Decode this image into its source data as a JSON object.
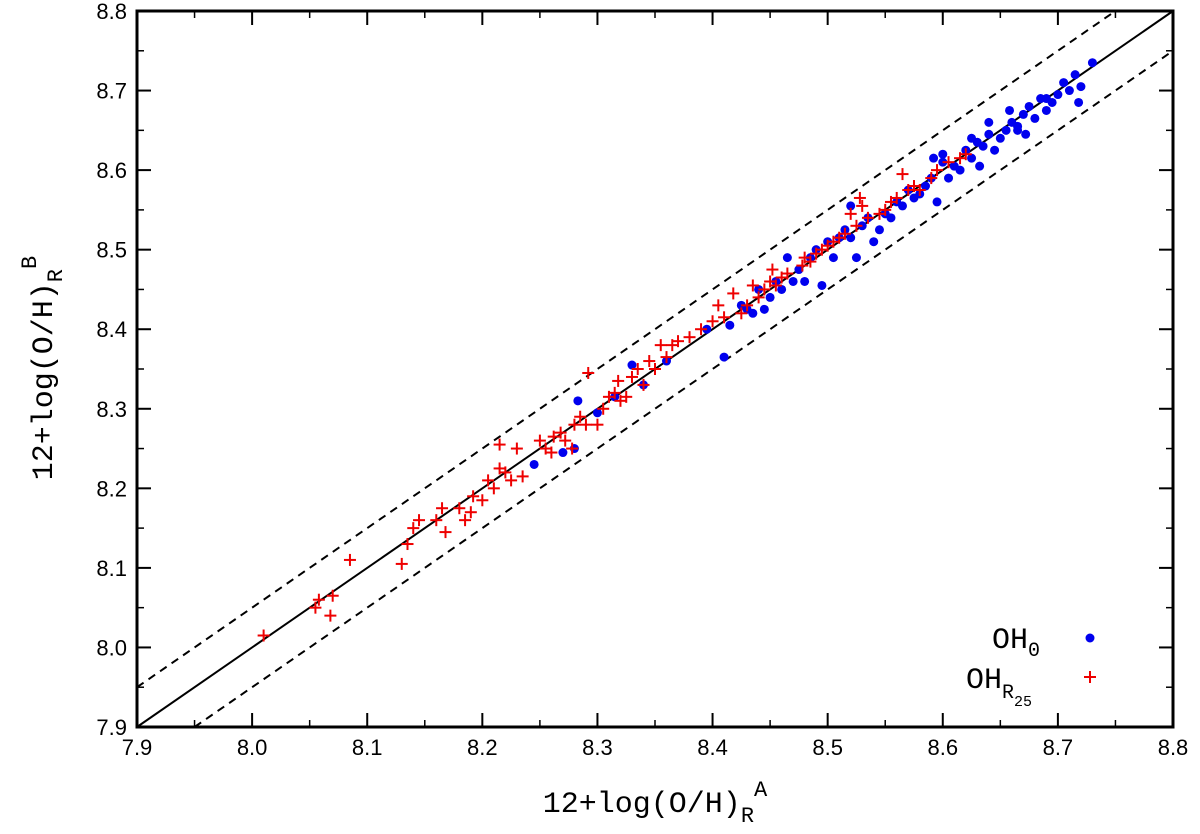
{
  "chart_data": {
    "type": "scatter",
    "xlabel": {
      "main": "12+log(O/H)",
      "sub": "R",
      "sup": "A"
    },
    "ylabel": {
      "main": "12+log(O/H)",
      "sub": "R",
      "sup": "B"
    },
    "xlim": [
      7.9,
      8.8
    ],
    "ylim": [
      7.9,
      8.8
    ],
    "xticks": [
      "7.9",
      "8.0",
      "8.1",
      "8.2",
      "8.3",
      "8.4",
      "8.5",
      "8.6",
      "8.7",
      "8.8"
    ],
    "yticks": [
      "7.9",
      "8.0",
      "8.1",
      "8.2",
      "8.3",
      "8.4",
      "8.5",
      "8.6",
      "8.7",
      "8.8"
    ],
    "grid": false,
    "legend_position": "bottom-right",
    "reference_lines": [
      {
        "name": "one-to-one",
        "style": "solid",
        "offset": 0
      },
      {
        "name": "upper-bound",
        "style": "dashed",
        "offset": 0.05
      },
      {
        "name": "lower-bound",
        "style": "dashed",
        "offset": -0.05
      }
    ],
    "series": [
      {
        "name": "OH0",
        "legend_main": "OH",
        "legend_sub": "0",
        "legend_subsub": "",
        "marker": "circle",
        "color": "#0000ee",
        "points": [
          [
            8.245,
            8.23
          ],
          [
            8.27,
            8.245
          ],
          [
            8.28,
            8.25
          ],
          [
            8.283,
            8.31
          ],
          [
            8.3,
            8.295
          ],
          [
            8.315,
            8.315
          ],
          [
            8.33,
            8.355
          ],
          [
            8.34,
            8.33
          ],
          [
            8.36,
            8.36
          ],
          [
            8.395,
            8.4
          ],
          [
            8.41,
            8.365
          ],
          [
            8.415,
            8.405
          ],
          [
            8.425,
            8.43
          ],
          [
            8.43,
            8.425
          ],
          [
            8.435,
            8.42
          ],
          [
            8.44,
            8.45
          ],
          [
            8.445,
            8.425
          ],
          [
            8.45,
            8.44
          ],
          [
            8.455,
            8.46
          ],
          [
            8.46,
            8.45
          ],
          [
            8.465,
            8.49
          ],
          [
            8.47,
            8.46
          ],
          [
            8.475,
            8.475
          ],
          [
            8.48,
            8.46
          ],
          [
            8.485,
            8.49
          ],
          [
            8.49,
            8.5
          ],
          [
            8.495,
            8.455
          ],
          [
            8.5,
            8.51
          ],
          [
            8.505,
            8.49
          ],
          [
            8.51,
            8.515
          ],
          [
            8.515,
            8.525
          ],
          [
            8.52,
            8.515
          ],
          [
            8.52,
            8.555
          ],
          [
            8.525,
            8.49
          ],
          [
            8.53,
            8.53
          ],
          [
            8.535,
            8.54
          ],
          [
            8.54,
            8.51
          ],
          [
            8.545,
            8.525
          ],
          [
            8.55,
            8.545
          ],
          [
            8.555,
            8.54
          ],
          [
            8.56,
            8.56
          ],
          [
            8.565,
            8.555
          ],
          [
            8.57,
            8.575
          ],
          [
            8.575,
            8.565
          ],
          [
            8.58,
            8.57
          ],
          [
            8.585,
            8.58
          ],
          [
            8.59,
            8.59
          ],
          [
            8.592,
            8.615
          ],
          [
            8.595,
            8.56
          ],
          [
            8.6,
            8.61
          ],
          [
            8.605,
            8.59
          ],
          [
            8.61,
            8.605
          ],
          [
            8.615,
            8.6
          ],
          [
            8.62,
            8.625
          ],
          [
            8.625,
            8.615
          ],
          [
            8.63,
            8.635
          ],
          [
            8.632,
            8.605
          ],
          [
            8.635,
            8.63
          ],
          [
            8.64,
            8.645
          ],
          [
            8.645,
            8.625
          ],
          [
            8.65,
            8.64
          ],
          [
            8.655,
            8.65
          ],
          [
            8.658,
            8.675
          ],
          [
            8.66,
            8.66
          ],
          [
            8.665,
            8.65
          ],
          [
            8.67,
            8.67
          ],
          [
            8.672,
            8.645
          ],
          [
            8.675,
            8.68
          ],
          [
            8.68,
            8.665
          ],
          [
            8.685,
            8.69
          ],
          [
            8.69,
            8.675
          ],
          [
            8.695,
            8.685
          ],
          [
            8.7,
            8.695
          ],
          [
            8.705,
            8.71
          ],
          [
            8.71,
            8.7
          ],
          [
            8.715,
            8.72
          ],
          [
            8.718,
            8.685
          ],
          [
            8.72,
            8.705
          ],
          [
            8.73,
            8.735
          ],
          [
            8.6,
            8.62
          ],
          [
            8.625,
            8.64
          ],
          [
            8.64,
            8.66
          ],
          [
            8.665,
            8.655
          ],
          [
            8.69,
            8.69
          ]
        ]
      },
      {
        "name": "OHR25",
        "legend_main": "OH",
        "legend_sub": "R",
        "legend_subsub": "25",
        "marker": "plus",
        "color": "#ee0000",
        "points": [
          [
            8.01,
            8.015
          ],
          [
            8.055,
            8.05
          ],
          [
            8.058,
            8.06
          ],
          [
            8.068,
            8.04
          ],
          [
            8.07,
            8.065
          ],
          [
            8.085,
            8.11
          ],
          [
            8.13,
            8.105
          ],
          [
            8.135,
            8.13
          ],
          [
            8.14,
            8.15
          ],
          [
            8.145,
            8.16
          ],
          [
            8.16,
            8.16
          ],
          [
            8.165,
            8.175
          ],
          [
            8.168,
            8.145
          ],
          [
            8.18,
            8.175
          ],
          [
            8.185,
            8.16
          ],
          [
            8.19,
            8.17
          ],
          [
            8.192,
            8.19
          ],
          [
            8.2,
            8.185
          ],
          [
            8.205,
            8.21
          ],
          [
            8.21,
            8.2
          ],
          [
            8.215,
            8.255
          ],
          [
            8.215,
            8.225
          ],
          [
            8.22,
            8.22
          ],
          [
            8.225,
            8.21
          ],
          [
            8.23,
            8.25
          ],
          [
            8.235,
            8.215
          ],
          [
            8.25,
            8.26
          ],
          [
            8.255,
            8.25
          ],
          [
            8.26,
            8.245
          ],
          [
            8.262,
            8.265
          ],
          [
            8.268,
            8.27
          ],
          [
            8.272,
            8.26
          ],
          [
            8.278,
            8.25
          ],
          [
            8.28,
            8.28
          ],
          [
            8.285,
            8.29
          ],
          [
            8.29,
            8.28
          ],
          [
            8.292,
            8.345
          ],
          [
            8.3,
            8.28
          ],
          [
            8.305,
            8.3
          ],
          [
            8.31,
            8.315
          ],
          [
            8.315,
            8.32
          ],
          [
            8.318,
            8.335
          ],
          [
            8.32,
            8.31
          ],
          [
            8.325,
            8.315
          ],
          [
            8.33,
            8.34
          ],
          [
            8.335,
            8.35
          ],
          [
            8.34,
            8.33
          ],
          [
            8.345,
            8.36
          ],
          [
            8.35,
            8.35
          ],
          [
            8.355,
            8.38
          ],
          [
            8.36,
            8.365
          ],
          [
            8.365,
            8.38
          ],
          [
            8.37,
            8.385
          ],
          [
            8.38,
            8.39
          ],
          [
            8.39,
            8.4
          ],
          [
            8.4,
            8.41
          ],
          [
            8.405,
            8.43
          ],
          [
            8.41,
            8.415
          ],
          [
            8.418,
            8.445
          ],
          [
            8.425,
            8.42
          ],
          [
            8.43,
            8.43
          ],
          [
            8.435,
            8.455
          ],
          [
            8.44,
            8.44
          ],
          [
            8.445,
            8.45
          ],
          [
            8.45,
            8.46
          ],
          [
            8.452,
            8.475
          ],
          [
            8.455,
            8.455
          ],
          [
            8.46,
            8.465
          ],
          [
            8.465,
            8.47
          ],
          [
            8.478,
            8.48
          ],
          [
            8.48,
            8.49
          ],
          [
            8.485,
            8.485
          ],
          [
            8.49,
            8.495
          ],
          [
            8.495,
            8.5
          ],
          [
            8.5,
            8.505
          ],
          [
            8.505,
            8.51
          ],
          [
            8.51,
            8.515
          ],
          [
            8.515,
            8.52
          ],
          [
            8.52,
            8.545
          ],
          [
            8.525,
            8.53
          ],
          [
            8.528,
            8.565
          ],
          [
            8.53,
            8.555
          ],
          [
            8.535,
            8.54
          ],
          [
            8.545,
            8.545
          ],
          [
            8.55,
            8.55
          ],
          [
            8.555,
            8.56
          ],
          [
            8.56,
            8.565
          ],
          [
            8.565,
            8.595
          ],
          [
            8.57,
            8.575
          ],
          [
            8.575,
            8.58
          ],
          [
            8.58,
            8.575
          ],
          [
            8.59,
            8.59
          ],
          [
            8.595,
            8.6
          ],
          [
            8.605,
            8.61
          ],
          [
            8.615,
            8.615
          ],
          [
            8.62,
            8.62
          ]
        ]
      }
    ]
  }
}
